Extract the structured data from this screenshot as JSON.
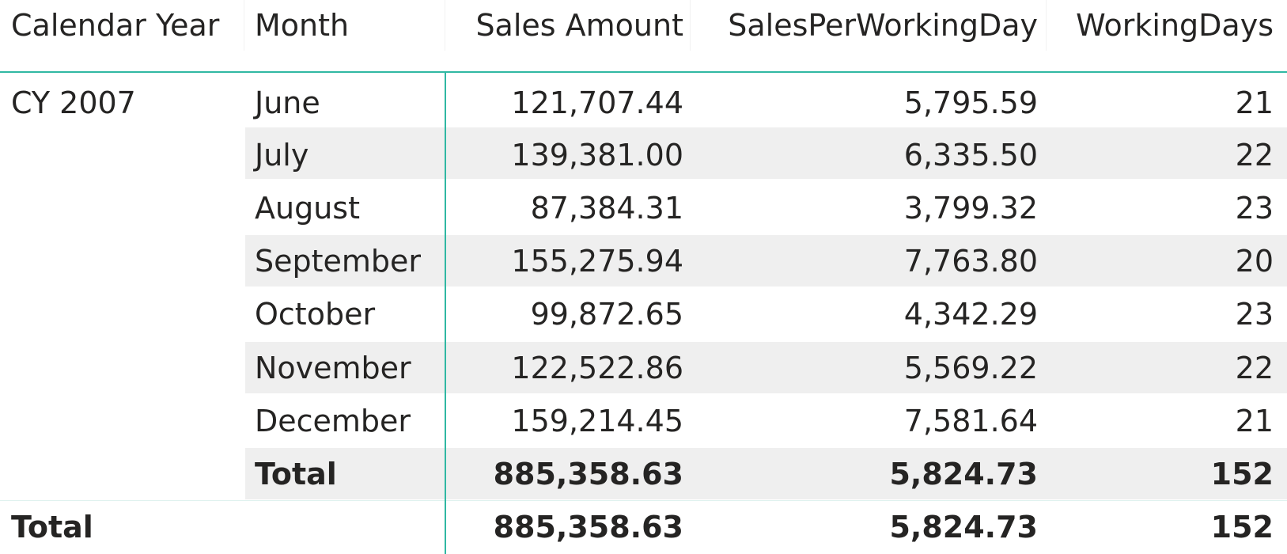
{
  "table": {
    "headers": {
      "calendar_year": "Calendar Year",
      "month": "Month",
      "sales_amount": "Sales Amount",
      "sales_per_working_day": "SalesPerWorkingDay",
      "working_days": "WorkingDays"
    },
    "year_label": "CY 2007",
    "rows": [
      {
        "month": "June",
        "sales": "121,707.44",
        "spwd": "5,795.59",
        "days": "21"
      },
      {
        "month": "July",
        "sales": "139,381.00",
        "spwd": "6,335.50",
        "days": "22"
      },
      {
        "month": "August",
        "sales": "87,384.31",
        "spwd": "3,799.32",
        "days": "23"
      },
      {
        "month": "September",
        "sales": "155,275.94",
        "spwd": "7,763.80",
        "days": "20"
      },
      {
        "month": "October",
        "sales": "99,872.65",
        "spwd": "4,342.29",
        "days": "23"
      },
      {
        "month": "November",
        "sales": "122,522.86",
        "spwd": "5,569.22",
        "days": "22"
      },
      {
        "month": "December",
        "sales": "159,214.45",
        "spwd": "7,581.64",
        "days": "21"
      }
    ],
    "subtotal": {
      "label": "Total",
      "sales": "885,358.63",
      "spwd": "5,824.73",
      "days": "152"
    },
    "grand_total": {
      "label": "Total",
      "sales": "885,358.63",
      "spwd": "5,824.73",
      "days": "152"
    }
  },
  "colors": {
    "accent_line": "#30b8a3",
    "band": "#efefef",
    "text": "#252423"
  }
}
